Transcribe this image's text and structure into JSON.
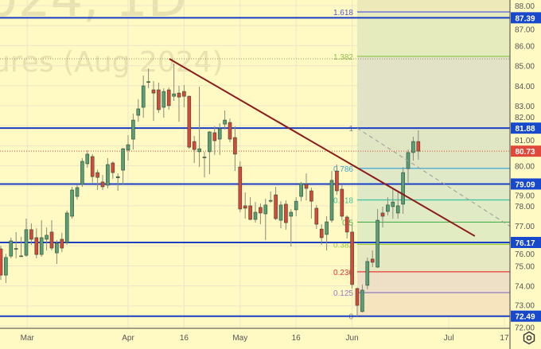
{
  "watermark": {
    "line1": "024, 1D",
    "line2": "ures (Aug 2024)"
  },
  "colors": {
    "background": "#fff9c4",
    "up": "#5a9e78",
    "down": "#d9473a",
    "level_line": "#1a3fc4",
    "trend_line": "#8b1a1a",
    "price_label_bg": "#1848cc",
    "last_price_bg": "#e0493a"
  },
  "chart_data": {
    "type": "candlestick",
    "ylim": [
      72,
      88
    ],
    "y_ticks": [
      "72.00",
      "73.00",
      "74.00",
      "75.00",
      "76.00",
      "77.00",
      "78.00",
      "79.00",
      "80.00",
      "81.00",
      "82.00",
      "83.00",
      "84.00",
      "85.00",
      "86.00",
      "87.00",
      "88.00"
    ],
    "x_ticks": [
      {
        "label": "Mar",
        "bar": 5.2
      },
      {
        "label": "Apr",
        "bar": 25
      },
      {
        "label": "16",
        "bar": 36
      },
      {
        "label": "May",
        "bar": 47
      },
      {
        "label": "16",
        "bar": 58
      },
      {
        "label": "Jun",
        "bar": 69
      },
      {
        "label": "Jul",
        "bar": 88
      },
      {
        "label": "17",
        "bar": 98.9
      }
    ],
    "ohlc": [
      [
        75.85,
        76.0,
        74.3,
        74.54
      ],
      [
        74.54,
        75.6,
        74.15,
        75.42
      ],
      [
        75.49,
        76.41,
        75.38,
        76.25
      ],
      [
        75.85,
        76.69,
        75.38,
        75.87
      ],
      [
        75.5,
        76.45,
        75.46,
        75.5
      ],
      [
        75.53,
        77.36,
        75.46,
        76.81
      ],
      [
        76.81,
        77.12,
        76.05,
        76.33
      ],
      [
        76.41,
        76.88,
        75.38,
        75.57
      ],
      [
        75.57,
        77.28,
        75.46,
        76.41
      ],
      [
        76.33,
        76.92,
        75.77,
        76.53
      ],
      [
        76.69,
        77.28,
        75.77,
        75.89
      ],
      [
        75.65,
        76.29,
        75.1,
        76.13
      ],
      [
        76.33,
        76.65,
        75.69,
        75.89
      ],
      [
        76.17,
        77.76,
        76.05,
        77.64
      ],
      [
        77.48,
        78.95,
        77.36,
        78.79
      ],
      [
        78.47,
        79.03,
        78.31,
        78.91
      ],
      [
        79.07,
        80.38,
        78.95,
        80.22
      ],
      [
        80.1,
        80.78,
        79.9,
        80.58
      ],
      [
        80.46,
        80.58,
        79.15,
        79.46
      ],
      [
        79.66,
        79.8,
        78.79,
        79.42
      ],
      [
        79.19,
        79.54,
        78.79,
        78.95
      ],
      [
        79.03,
        80.38,
        78.87,
        80.06
      ],
      [
        80.14,
        80.22,
        79.35,
        79.66
      ],
      [
        79.4,
        79.62,
        78.75,
        79.46
      ],
      [
        79.78,
        80.89,
        79.07,
        80.85
      ],
      [
        80.78,
        81.53,
        80.26,
        81.05
      ],
      [
        81.33,
        82.6,
        80.81,
        82.28
      ],
      [
        82.52,
        83.32,
        82.2,
        82.84
      ],
      [
        82.92,
        84.51,
        82.4,
        83.99
      ],
      [
        84.19,
        84.86,
        83.87,
        84.2
      ],
      [
        83.79,
        84.23,
        82.24,
        83.63
      ],
      [
        83.79,
        84.15,
        82.64,
        82.8
      ],
      [
        82.92,
        83.87,
        82.4,
        83.71
      ],
      [
        83.79,
        83.91,
        82.8,
        83.0
      ],
      [
        83.47,
        85.1,
        83.24,
        83.59
      ],
      [
        83.63,
        83.99,
        82.2,
        83.43
      ],
      [
        83.71,
        84.03,
        82.92,
        83.47
      ],
      [
        83.47,
        83.51,
        80.85,
        80.93
      ],
      [
        81.21,
        81.49,
        80.14,
        80.81
      ],
      [
        80.7,
        83.95,
        79.94,
        80.85
      ],
      [
        80.42,
        80.7,
        79.42,
        80.44
      ],
      [
        80.7,
        81.73,
        79.58,
        81.69
      ],
      [
        81.65,
        81.97,
        80.54,
        81.25
      ],
      [
        81.33,
        82.12,
        80.54,
        81.85
      ],
      [
        82.08,
        82.76,
        81.81,
        82.28
      ],
      [
        82.16,
        82.36,
        81.17,
        81.33
      ],
      [
        81.41,
        81.97,
        79.74,
        80.58
      ],
      [
        79.94,
        80.22,
        77.68,
        77.84
      ],
      [
        78.0,
        78.67,
        77.36,
        77.88
      ],
      [
        78.0,
        78.43,
        77.28,
        77.32
      ],
      [
        77.32,
        78.19,
        77.16,
        77.68
      ],
      [
        77.92,
        78.12,
        77.08,
        77.64
      ],
      [
        77.6,
        78.35,
        76.29,
        78.04
      ],
      [
        78.27,
        78.71,
        78.15,
        78.27
      ],
      [
        78.55,
        78.95,
        77.28,
        77.36
      ],
      [
        77.28,
        78.23,
        76.88,
        78.04
      ],
      [
        78.08,
        78.27,
        76.81,
        77.16
      ],
      [
        77.48,
        77.84,
        75.97,
        77.68
      ],
      [
        77.8,
        78.43,
        77.48,
        78.23
      ],
      [
        78.47,
        79.19,
        78.23,
        79.11
      ],
      [
        79.07,
        79.62,
        78.27,
        78.87
      ],
      [
        78.75,
        78.91,
        77.36,
        78.23
      ],
      [
        77.88,
        78.04,
        76.84,
        77.08
      ],
      [
        76.84,
        77.08,
        76.05,
        76.41
      ],
      [
        76.57,
        77.48,
        75.77,
        77.2
      ],
      [
        77.28,
        79.74,
        77.16,
        79.27
      ],
      [
        79.74,
        80.06,
        78.55,
        78.75
      ],
      [
        78.83,
        79.03,
        77.28,
        77.48
      ],
      [
        77.44,
        77.52,
        76.37,
        76.69
      ],
      [
        76.69,
        77.04,
        73.87,
        74.07
      ],
      [
        73.87,
        73.91,
        72.48,
        73.03
      ],
      [
        72.72,
        74.07,
        72.68,
        73.79
      ],
      [
        74.03,
        75.42,
        73.83,
        75.22
      ],
      [
        75.34,
        75.77,
        74.94,
        75.18
      ],
      [
        74.94,
        77.84,
        74.9,
        77.28
      ],
      [
        77.64,
        77.96,
        76.92,
        77.48
      ],
      [
        77.72,
        78.43,
        77.52,
        78.04
      ],
      [
        77.96,
        78.87,
        77.36,
        78.19
      ],
      [
        77.64,
        78.67,
        77.36,
        78.0
      ],
      [
        78.08,
        79.94,
        77.6,
        79.66
      ],
      [
        79.86,
        80.81,
        79.15,
        80.66
      ],
      [
        80.66,
        81.45,
        80.26,
        81.21
      ],
      [
        81.21,
        81.77,
        80.3,
        80.73
      ]
    ],
    "horizontal_levels": [
      87.39,
      81.88,
      79.09,
      76.17,
      72.49
    ],
    "last_price": 80.73,
    "dotted_level": 85.34,
    "trend_line": {
      "from": {
        "bar": 33.1,
        "price": 85.34
      },
      "to": {
        "bar": 93.1,
        "price": 76.49
      }
    },
    "dashed_line": {
      "from": {
        "bar": 70,
        "price": 81.88
      },
      "to": {
        "bar": 103,
        "price": 76.49
      }
    },
    "fibonacci": {
      "start_bar": 70,
      "low": 72.49,
      "high": 81.88,
      "levels": [
        {
          "label": "0",
          "ratio": 0,
          "color": "#8a8a8a",
          "fill": "#f6e4be"
        },
        {
          "label": "0.125",
          "ratio": 0.125,
          "color": "#8e7cc3",
          "fill": "#eee0c6"
        },
        {
          "label": "0.236",
          "ratio": 0.236,
          "color": "#e53935",
          "fill": "#e6e8c2"
        },
        {
          "label": "0.382",
          "ratio": 0.382,
          "color": "#9ccc3a",
          "fill": "#e2ecc2"
        },
        {
          "label": "0.5",
          "ratio": 0.5,
          "color": "#4caf50",
          "fill": "#e0ebc6"
        },
        {
          "label": "0.618",
          "ratio": 0.618,
          "color": "#3cc39b",
          "fill": "#dfe9c8"
        },
        {
          "label": "0.786",
          "ratio": 0.786,
          "color": "#3fa7d6",
          "fill": "#e0e6c4"
        },
        {
          "label": "1",
          "ratio": 1,
          "color": "#8a8a8a",
          "fill": "#e2e2c6"
        },
        {
          "label": "1.382",
          "ratio": 1.382,
          "color": "#8bc34a",
          "fill": "#e6ebbe"
        },
        {
          "label": "1.618",
          "ratio": 1.618,
          "color": "#5b5bd6",
          "fill": null
        }
      ]
    }
  },
  "icons": {
    "settings": "settings-icon"
  }
}
